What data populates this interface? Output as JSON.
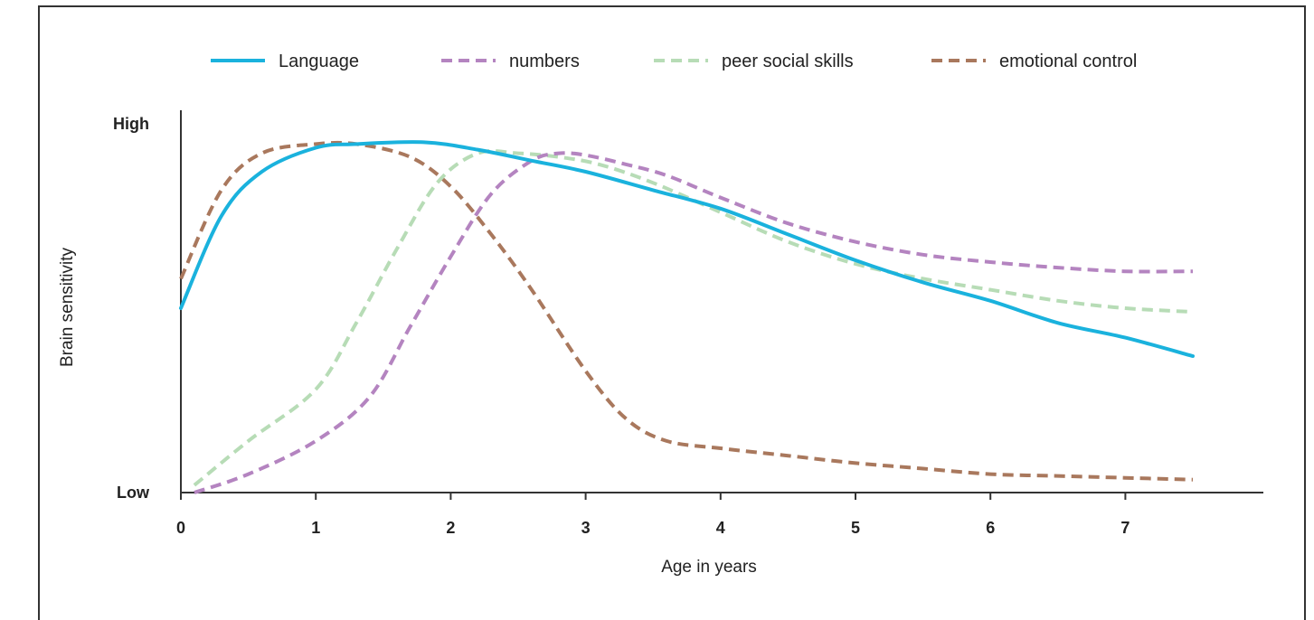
{
  "chart_data": {
    "type": "line",
    "title": "",
    "xlabel": "Age in years",
    "ylabel": "Brain sensitivity",
    "xlim": [
      0,
      8
    ],
    "ylim": [
      0,
      1
    ],
    "x_ticks": [
      "0",
      "1",
      "2",
      "3",
      "4",
      "5",
      "6",
      "7"
    ],
    "y_tick_labels": [
      {
        "label": "Low",
        "value": 0
      },
      {
        "label": "High",
        "value": 1
      }
    ],
    "grid": false,
    "legend_position": "top",
    "series": [
      {
        "name": "Language",
        "color": "#1ab2dd",
        "style": "solid",
        "x": [
          0,
          0.3,
          0.6,
          1.0,
          1.3,
          1.8,
          2.2,
          2.6,
          3.0,
          3.5,
          4.0,
          4.5,
          5.0,
          5.5,
          6.0,
          6.5,
          7.0,
          7.5
        ],
        "y": [
          0.5,
          0.75,
          0.87,
          0.935,
          0.945,
          0.95,
          0.93,
          0.9,
          0.87,
          0.82,
          0.77,
          0.7,
          0.63,
          0.57,
          0.52,
          0.46,
          0.42,
          0.37
        ]
      },
      {
        "name": "numbers",
        "color": "#b484c0",
        "style": "dashed",
        "x": [
          0.1,
          0.5,
          1.0,
          1.4,
          1.7,
          2.0,
          2.3,
          2.6,
          2.8,
          3.0,
          3.3,
          3.6,
          4.0,
          4.5,
          5.0,
          5.5,
          6.0,
          6.5,
          7.0,
          7.5
        ],
        "y": [
          0.0,
          0.05,
          0.14,
          0.26,
          0.45,
          0.64,
          0.81,
          0.9,
          0.92,
          0.915,
          0.89,
          0.86,
          0.8,
          0.73,
          0.68,
          0.645,
          0.625,
          0.61,
          0.6,
          0.6
        ]
      },
      {
        "name": "peer social skills",
        "color": "#b7dcb6",
        "style": "dashed",
        "x": [
          0.1,
          0.5,
          1.0,
          1.3,
          1.6,
          1.9,
          2.2,
          2.5,
          2.8,
          3.1,
          3.5,
          4.0,
          4.5,
          5.0,
          5.5,
          6.0,
          6.5,
          7.0,
          7.5
        ],
        "y": [
          0.02,
          0.14,
          0.28,
          0.46,
          0.66,
          0.84,
          0.92,
          0.92,
          0.91,
          0.89,
          0.84,
          0.76,
          0.68,
          0.62,
          0.58,
          0.55,
          0.52,
          0.5,
          0.49
        ]
      },
      {
        "name": "emotional control",
        "color": "#a9785d",
        "style": "dashed",
        "x": [
          0,
          0.3,
          0.6,
          1.0,
          1.3,
          1.7,
          2.0,
          2.3,
          2.6,
          3.0,
          3.3,
          3.6,
          4.0,
          4.5,
          5.0,
          5.5,
          6.0,
          6.5,
          7.0,
          7.5
        ],
        "y": [
          0.58,
          0.82,
          0.92,
          0.945,
          0.945,
          0.91,
          0.83,
          0.7,
          0.55,
          0.33,
          0.2,
          0.14,
          0.12,
          0.1,
          0.08,
          0.065,
          0.05,
          0.045,
          0.04,
          0.035
        ]
      }
    ]
  }
}
